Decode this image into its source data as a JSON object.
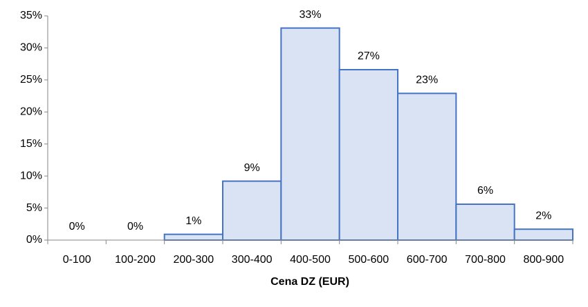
{
  "chart_data": {
    "type": "bar",
    "x_label": "Cena DZ (EUR)",
    "categories": [
      "0-100",
      "100-200",
      "200-300",
      "300-400",
      "400-500",
      "500-600",
      "600-700",
      "700-800",
      "800-900"
    ],
    "values": [
      0,
      0,
      0.9,
      9.2,
      33.1,
      26.6,
      22.9,
      5.6,
      1.7
    ],
    "value_labels": [
      "0%",
      "0%",
      "1%",
      "9%",
      "33%",
      "27%",
      "23%",
      "6%",
      "2%"
    ],
    "color": "#dae3f3",
    "edge_color": "#4472c4",
    "ylim": [
      0,
      35
    ],
    "yticks": [
      {
        "value": 0,
        "label": "0%"
      },
      {
        "value": 5,
        "label": "5%"
      },
      {
        "value": 10,
        "label": "10%"
      },
      {
        "value": 15,
        "label": "15%"
      },
      {
        "value": 20,
        "label": "20%"
      },
      {
        "value": 25,
        "label": "25%"
      },
      {
        "value": 30,
        "label": "30%"
      },
      {
        "value": 35,
        "label": "35%"
      }
    ],
    "grid": false
  }
}
